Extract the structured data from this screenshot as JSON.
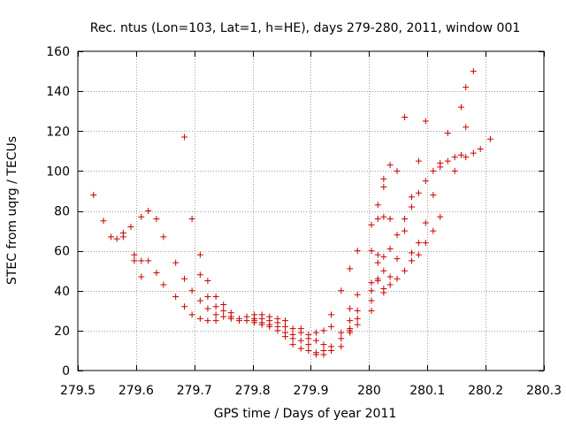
{
  "chart_data": {
    "type": "scatter",
    "title": "Rec. ntus (Lon=103, Lat=1, h=HE), days 279-280, 2011, window 001",
    "xlabel": "GPS time / Days of year 2011",
    "ylabel": "STEC from uqrg / TECUs",
    "xlim": [
      279.5,
      280.3
    ],
    "ylim": [
      0,
      160
    ],
    "grid": true,
    "marker": "+",
    "marker_color": "#cc0000",
    "x_ticks": [
      "279.5",
      "279.6",
      "279.7",
      "279.8",
      "279.9",
      "280",
      "280.1",
      "280.2",
      "280.3"
    ],
    "y_ticks": [
      "0",
      "20",
      "40",
      "60",
      "80",
      "100",
      "120",
      "140",
      "160"
    ],
    "points": [
      [
        279.527,
        88
      ],
      [
        279.544,
        75
      ],
      [
        279.557,
        67
      ],
      [
        279.567,
        66
      ],
      [
        279.578,
        67
      ],
      [
        279.578,
        69
      ],
      [
        279.591,
        72
      ],
      [
        279.597,
        58
      ],
      [
        279.597,
        55
      ],
      [
        279.609,
        77
      ],
      [
        279.609,
        55
      ],
      [
        279.609,
        47
      ],
      [
        279.621,
        80
      ],
      [
        279.621,
        55
      ],
      [
        279.635,
        76
      ],
      [
        279.635,
        49
      ],
      [
        279.647,
        67
      ],
      [
        279.647,
        43
      ],
      [
        279.668,
        54
      ],
      [
        279.668,
        37
      ],
      [
        279.683,
        117
      ],
      [
        279.683,
        46
      ],
      [
        279.683,
        32
      ],
      [
        279.696,
        76
      ],
      [
        279.696,
        40
      ],
      [
        279.696,
        28
      ],
      [
        279.71,
        58
      ],
      [
        279.71,
        48
      ],
      [
        279.71,
        35
      ],
      [
        279.71,
        26
      ],
      [
        279.723,
        45
      ],
      [
        279.723,
        37
      ],
      [
        279.723,
        31
      ],
      [
        279.723,
        25
      ],
      [
        279.737,
        37
      ],
      [
        279.737,
        32
      ],
      [
        279.737,
        28
      ],
      [
        279.737,
        25
      ],
      [
        279.75,
        33
      ],
      [
        279.75,
        30
      ],
      [
        279.75,
        27
      ],
      [
        279.763,
        29
      ],
      [
        279.763,
        27
      ],
      [
        279.763,
        26
      ],
      [
        279.777,
        26
      ],
      [
        279.777,
        25
      ],
      [
        279.79,
        27
      ],
      [
        279.79,
        25
      ],
      [
        279.803,
        28
      ],
      [
        279.803,
        26
      ],
      [
        279.803,
        25
      ],
      [
        279.803,
        24
      ],
      [
        279.816,
        28
      ],
      [
        279.816,
        26
      ],
      [
        279.816,
        24
      ],
      [
        279.816,
        23
      ],
      [
        279.829,
        27
      ],
      [
        279.829,
        25
      ],
      [
        279.829,
        23
      ],
      [
        279.829,
        22
      ],
      [
        279.843,
        26
      ],
      [
        279.843,
        24
      ],
      [
        279.843,
        22
      ],
      [
        279.843,
        20
      ],
      [
        279.856,
        25
      ],
      [
        279.856,
        22
      ],
      [
        279.856,
        19
      ],
      [
        279.856,
        17
      ],
      [
        279.869,
        21
      ],
      [
        279.869,
        18
      ],
      [
        279.869,
        16
      ],
      [
        279.869,
        13
      ],
      [
        279.883,
        21
      ],
      [
        279.883,
        19
      ],
      [
        279.883,
        15
      ],
      [
        279.883,
        11
      ],
      [
        279.896,
        18
      ],
      [
        279.896,
        16
      ],
      [
        279.896,
        13
      ],
      [
        279.896,
        10
      ],
      [
        279.909,
        19
      ],
      [
        279.909,
        15
      ],
      [
        279.909,
        9
      ],
      [
        279.909,
        8
      ],
      [
        279.922,
        20
      ],
      [
        279.922,
        13
      ],
      [
        279.922,
        10
      ],
      [
        279.922,
        8
      ],
      [
        279.935,
        28
      ],
      [
        279.935,
        22
      ],
      [
        279.935,
        12
      ],
      [
        279.935,
        10
      ],
      [
        279.952,
        40
      ],
      [
        279.952,
        19
      ],
      [
        279.952,
        16
      ],
      [
        279.952,
        12
      ],
      [
        279.967,
        51
      ],
      [
        279.967,
        31
      ],
      [
        279.967,
        25
      ],
      [
        279.967,
        21
      ],
      [
        279.967,
        20
      ],
      [
        279.967,
        19
      ],
      [
        279.98,
        60
      ],
      [
        279.98,
        38
      ],
      [
        279.98,
        30
      ],
      [
        279.98,
        26
      ],
      [
        279.98,
        23
      ],
      [
        280.004,
        73
      ],
      [
        280.004,
        60
      ],
      [
        280.004,
        44
      ],
      [
        280.004,
        40
      ],
      [
        280.004,
        35
      ],
      [
        280.004,
        30
      ],
      [
        280.015,
        83
      ],
      [
        280.015,
        76
      ],
      [
        280.015,
        58
      ],
      [
        280.015,
        54
      ],
      [
        280.015,
        46
      ],
      [
        280.015,
        45
      ],
      [
        280.025,
        96
      ],
      [
        280.025,
        92
      ],
      [
        280.025,
        77
      ],
      [
        280.025,
        57
      ],
      [
        280.025,
        50
      ],
      [
        280.025,
        41
      ],
      [
        280.025,
        39
      ],
      [
        280.036,
        103
      ],
      [
        280.036,
        76
      ],
      [
        280.036,
        61
      ],
      [
        280.036,
        47
      ],
      [
        280.036,
        43
      ],
      [
        280.048,
        100
      ],
      [
        280.048,
        68
      ],
      [
        280.048,
        56
      ],
      [
        280.048,
        46
      ],
      [
        280.061,
        127
      ],
      [
        280.061,
        76
      ],
      [
        280.061,
        70
      ],
      [
        280.061,
        50
      ],
      [
        280.073,
        87
      ],
      [
        280.073,
        82
      ],
      [
        280.073,
        59
      ],
      [
        280.073,
        55
      ],
      [
        280.085,
        105
      ],
      [
        280.085,
        89
      ],
      [
        280.085,
        64
      ],
      [
        280.085,
        58
      ],
      [
        280.097,
        125
      ],
      [
        280.097,
        95
      ],
      [
        280.097,
        74
      ],
      [
        280.097,
        64
      ],
      [
        280.11,
        100
      ],
      [
        280.11,
        88
      ],
      [
        280.11,
        70
      ],
      [
        280.122,
        104
      ],
      [
        280.122,
        102
      ],
      [
        280.122,
        77
      ],
      [
        280.135,
        119
      ],
      [
        280.135,
        105
      ],
      [
        280.147,
        107
      ],
      [
        280.147,
        100
      ],
      [
        280.158,
        132
      ],
      [
        280.158,
        108
      ],
      [
        280.166,
        142
      ],
      [
        280.166,
        122
      ],
      [
        280.166,
        107
      ],
      [
        280.179,
        150
      ],
      [
        280.179,
        109
      ],
      [
        280.191,
        111
      ],
      [
        280.208,
        116
      ]
    ]
  }
}
